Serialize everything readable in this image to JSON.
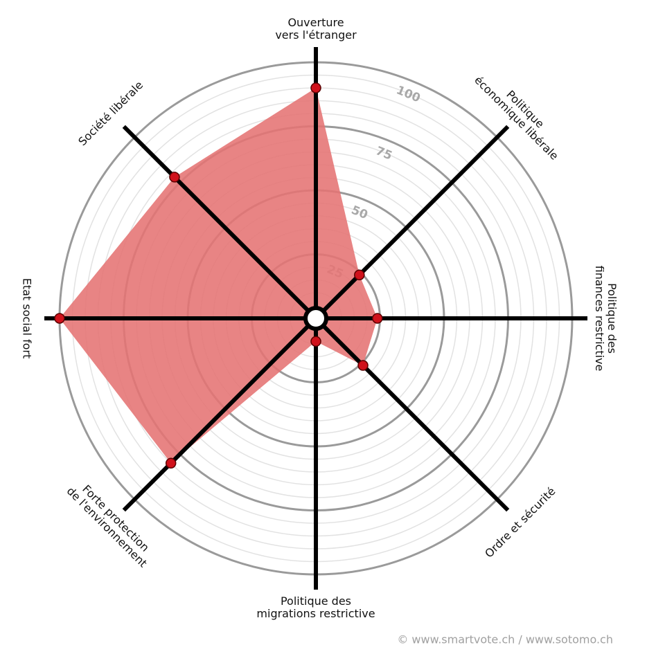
{
  "chart_data": {
    "type": "radar",
    "categories": [
      "Ouverture\nvers l'étranger",
      "Politique\néconomique libérale",
      "Politique des\nfinances restrictive",
      "Ordre et sécurité",
      "Politique des\nmigrations restrictive",
      "Forte protection\nde l'environnement",
      "Etat social fort",
      "Société libérale"
    ],
    "values": [
      90,
      24,
      24,
      26,
      9,
      80,
      100,
      78
    ],
    "color": "#e57373",
    "point_color": "#d0111b",
    "rlim": [
      0,
      100
    ],
    "rticks": [
      25,
      50,
      75,
      100
    ],
    "source": "© www.smartvote.ch / www.sotomo.ch"
  }
}
